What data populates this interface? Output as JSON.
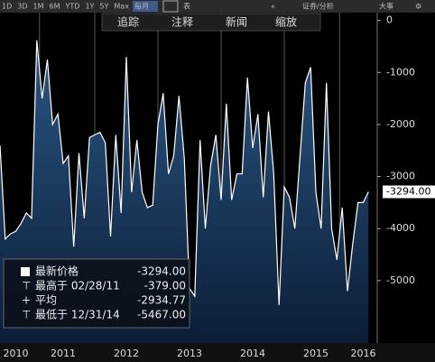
{
  "toolbar": {
    "ranges": [
      "1D",
      "3D",
      "1M",
      "6M",
      "YTD",
      "1Y",
      "5Y",
      "Max"
    ],
    "period": "每月",
    "table": "表",
    "analysis": "证券/分析",
    "events": "大事",
    "actions": [
      "追踪",
      "注释",
      "新闻",
      "缩放"
    ]
  },
  "chart_data": {
    "type": "area",
    "categories": [
      null,
      null,
      null,
      "2010",
      null,
      null,
      null,
      null,
      null,
      null,
      null,
      null,
      "2011",
      null,
      null,
      null,
      null,
      null,
      null,
      null,
      null,
      null,
      null,
      null,
      "2012",
      null,
      null,
      null,
      null,
      null,
      null,
      null,
      null,
      null,
      null,
      null,
      "2013",
      null,
      null,
      null,
      null,
      null,
      null,
      null,
      null,
      null,
      null,
      null,
      "2014",
      null,
      null,
      null,
      null,
      null,
      null,
      null,
      null,
      null,
      null,
      null,
      "2015",
      null,
      null,
      null,
      null,
      null,
      null,
      null,
      null,
      "2016",
      null
    ],
    "series": [
      {
        "name": "最新价格",
        "color": "#ffffff",
        "values": [
          -2400,
          -4200,
          -4100,
          -4050,
          -3900,
          -3700,
          -3800,
          -379,
          -1500,
          -750,
          -2000,
          -1800,
          -2750,
          -2600,
          -4350,
          -2550,
          -3800,
          -2250,
          -2200,
          -2150,
          -2350,
          -4150,
          -2200,
          -3700,
          -700,
          -3300,
          -2300,
          -3300,
          -3600,
          -3550,
          -2000,
          -1400,
          -2950,
          -2600,
          -1450,
          -2650,
          -5150,
          -5300,
          -2300,
          -4000,
          -2800,
          -2200,
          -3450,
          -1600,
          -3450,
          -2950,
          -2950,
          -1100,
          -2450,
          -1800,
          -3400,
          -1750,
          -2950,
          -5467,
          -3200,
          -3400,
          -4000,
          -2600,
          -1200,
          -900,
          -3300,
          -4000,
          -1200,
          -4000,
          -4600,
          -3600,
          -5200,
          -4300,
          -3500,
          -3500,
          -3294
        ]
      }
    ],
    "ylim": [
      -6200,
      150
    ],
    "yticks": [
      0,
      -1000,
      -2000,
      -3000,
      -4000,
      -5000
    ],
    "last_label": "-3294.00",
    "stats": [
      {
        "name": "最新价格",
        "text": "-3294.00"
      },
      {
        "name": "最高于 02/28/11",
        "text": "-379.00"
      },
      {
        "name": "平均",
        "text": "-2934.77"
      },
      {
        "name": "最低于 12/31/14",
        "text": "-5467.00"
      }
    ]
  }
}
